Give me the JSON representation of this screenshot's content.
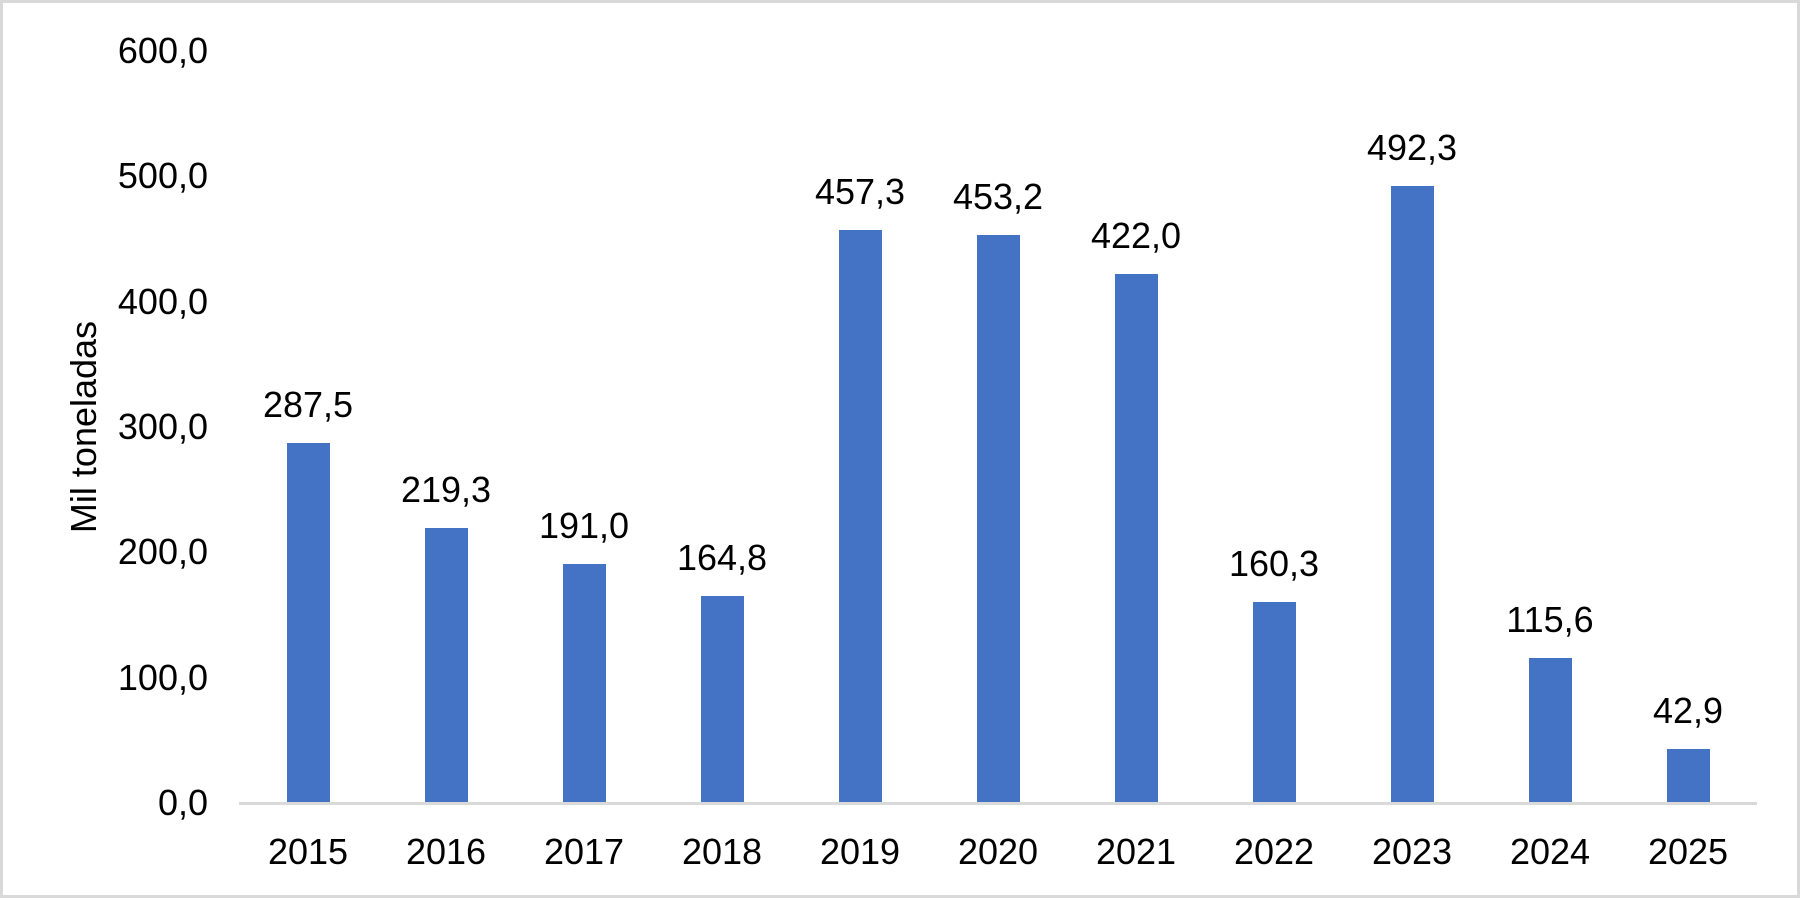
{
  "chart_data": {
    "type": "bar",
    "title": "",
    "xlabel": "",
    "ylabel": "Mil toneladas",
    "categories": [
      "2015",
      "2016",
      "2017",
      "2018",
      "2019",
      "2020",
      "2021",
      "2022",
      "2023",
      "2024",
      "2025"
    ],
    "values": [
      287.5,
      219.3,
      191.0,
      164.8,
      457.3,
      453.2,
      422.0,
      160.3,
      492.3,
      115.6,
      42.9
    ],
    "value_labels": [
      "287,5",
      "219,3",
      "191,0",
      "164,8",
      "457,3",
      "453,2",
      "422,0",
      "160,3",
      "492,3",
      "115,6",
      "42,9"
    ],
    "ylim": [
      0,
      600
    ],
    "ytick_interval": 100,
    "ytick_labels": [
      "0,0",
      "100,0",
      "200,0",
      "300,0",
      "400,0",
      "500,0",
      "600,0"
    ],
    "grid": false,
    "legend": false,
    "data_labels_position": "outside-end",
    "colors": {
      "bar": "#4472C4",
      "axis_line": "#D9D9D9",
      "frame_border": "#D9D9D9",
      "text": "#000000",
      "background": "#FFFFFF"
    }
  }
}
